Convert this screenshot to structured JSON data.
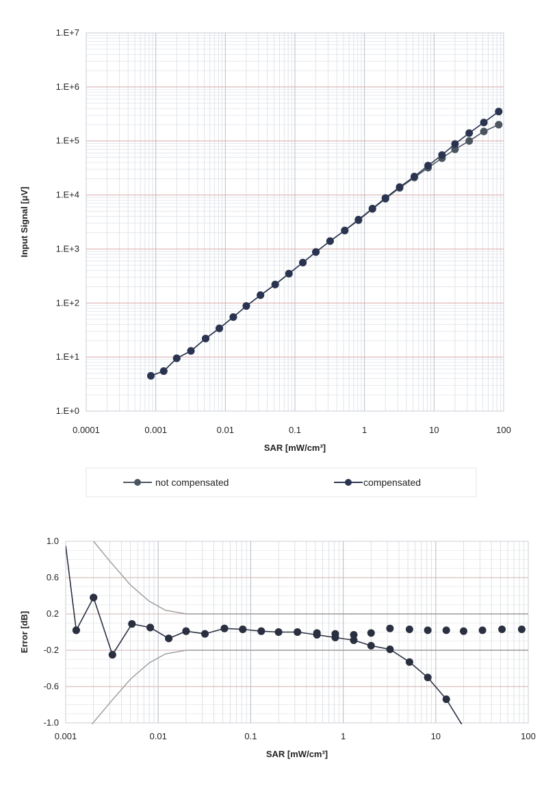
{
  "chart_data": [
    {
      "type": "line",
      "x_scale": "log",
      "y_scale": "log",
      "xlabel": "SAR [mW/cm³]",
      "ylabel": "Input Signal  [μV]",
      "xlim": [
        0.0001,
        100
      ],
      "ylim": [
        1,
        10000000
      ],
      "x_tick_labels": [
        "0.0001",
        "0.001",
        "0.01",
        "0.1",
        "1",
        "10",
        "100"
      ],
      "y_tick_labels": [
        "1.E+0",
        "1.E+1",
        "1.E+2",
        "1.E+3",
        "1.E+4",
        "1.E+5",
        "1.E+6",
        "1.E+7"
      ],
      "grid": true,
      "legend_position": "bottom",
      "series": [
        {
          "name": "not compensated",
          "color": "#4a5560",
          "x": [
            0.00085,
            0.0013,
            0.002,
            0.0032,
            0.0052,
            0.0082,
            0.013,
            0.02,
            0.032,
            0.052,
            0.082,
            0.13,
            0.2,
            0.32,
            0.52,
            0.82,
            1.3,
            2,
            3.2,
            5.2,
            8.2,
            13,
            20,
            32,
            52,
            85
          ],
          "values": [
            4.5,
            5.5,
            9.5,
            13,
            22,
            34,
            55,
            88,
            140,
            220,
            350,
            560,
            880,
            1400,
            2200,
            3400,
            5500,
            8500,
            13500,
            21000,
            32000,
            48000,
            70000,
            100000,
            150000,
            200000
          ]
        },
        {
          "name": "compensated",
          "color": "#2a3450",
          "x": [
            0.00085,
            0.0013,
            0.002,
            0.0032,
            0.0052,
            0.0082,
            0.013,
            0.02,
            0.032,
            0.052,
            0.082,
            0.13,
            0.2,
            0.32,
            0.52,
            0.82,
            1.3,
            2,
            3.2,
            5.2,
            8.2,
            13,
            20,
            32,
            52,
            85
          ],
          "values": [
            4.5,
            5.5,
            9.5,
            13,
            22,
            34,
            55,
            88,
            140,
            220,
            350,
            560,
            880,
            1400,
            2200,
            3500,
            5600,
            8800,
            14000,
            22000,
            35000,
            55000,
            88000,
            140000,
            220000,
            350000
          ]
        }
      ]
    },
    {
      "type": "line",
      "x_scale": "log",
      "xlabel": "SAR [mW/cm³]",
      "ylabel": "Error [dB]",
      "xlim": [
        0.001,
        100
      ],
      "ylim": [
        -1.0,
        1.0
      ],
      "x_tick_labels": [
        "0.001",
        "0.01",
        "0.1",
        "1",
        "10",
        "100"
      ],
      "y_tick_labels": [
        "1.0",
        "0.6",
        "0.2",
        "-0.2",
        "-0.6",
        "-1.0"
      ],
      "y_ticks": [
        1.0,
        0.6,
        0.2,
        -0.2,
        -0.6,
        -1.0
      ],
      "grid": true,
      "series": [
        {
          "name": "",
          "color": "#2a3040",
          "x": [
            0.001,
            0.0013,
            0.002,
            0.0032,
            0.0052,
            0.0082,
            0.013,
            0.02,
            0.032,
            0.052,
            0.082,
            0.13,
            0.2,
            0.32,
            0.52,
            0.82,
            1.3,
            2,
            3.2,
            5.2,
            8.2,
            13,
            20
          ],
          "values": [
            0.95,
            0.02,
            0.38,
            -0.25,
            0.09,
            0.05,
            -0.07,
            0.01,
            -0.02,
            0.04,
            0.03,
            0.01,
            0.0,
            0.0,
            -0.03,
            -0.06,
            -0.09,
            -0.15,
            -0.19,
            -0.33,
            -0.5,
            -0.74,
            -1.05
          ]
        },
        {
          "name": "",
          "color": "#2a3040",
          "markers_only": true,
          "x": [
            0.0013,
            0.002,
            0.0032,
            0.0052,
            0.0082,
            0.013,
            0.02,
            0.032,
            0.052,
            0.082,
            0.13,
            0.2,
            0.32,
            0.52,
            0.82,
            1.3,
            2,
            3.2,
            5.2,
            8.2,
            13,
            20,
            32,
            52,
            85
          ],
          "values": [
            0.02,
            0.38,
            -0.25,
            0.09,
            0.05,
            -0.07,
            0.01,
            -0.02,
            0.04,
            0.03,
            0.01,
            0.0,
            0.0,
            -0.01,
            -0.02,
            -0.03,
            -0.01,
            0.04,
            0.03,
            0.02,
            0.02,
            0.01,
            0.02,
            0.03,
            0.03
          ]
        },
        {
          "name": "",
          "color": "#9a9a9a",
          "line_only": true,
          "x": [
            0.002,
            0.003,
            0.005,
            0.008,
            0.012,
            0.02,
            0.05,
            0.1,
            1,
            10,
            100
          ],
          "values": [
            1.0,
            0.78,
            0.52,
            0.34,
            0.24,
            0.2,
            0.2,
            0.2,
            0.2,
            0.2,
            0.2
          ]
        },
        {
          "name": "",
          "color": "#9a9a9a",
          "line_only": true,
          "x": [
            0.0018,
            0.003,
            0.005,
            0.008,
            0.012,
            0.02,
            0.05,
            0.1,
            1,
            10,
            100
          ],
          "values": [
            -1.05,
            -0.78,
            -0.52,
            -0.34,
            -0.24,
            -0.2,
            -0.2,
            -0.2,
            -0.2,
            -0.2,
            -0.2
          ]
        }
      ]
    }
  ]
}
